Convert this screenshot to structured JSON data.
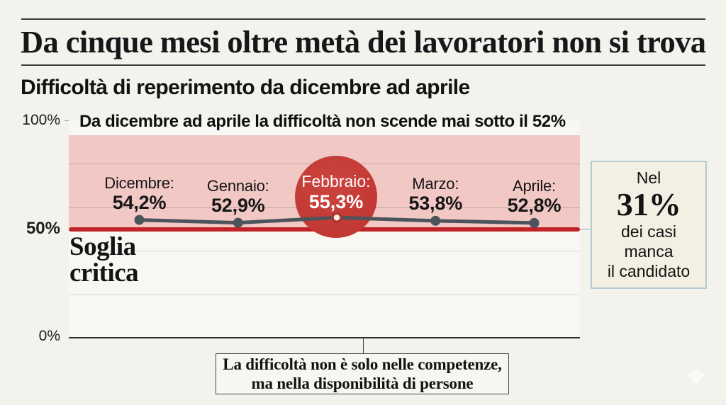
{
  "header": {
    "title": "Da cinque mesi oltre metà dei lavoratori non si trova",
    "subtitle": "Difficoltà di reperimento da dicembre ad aprile"
  },
  "chart_data": {
    "type": "line",
    "title": "Difficoltà di reperimento da dicembre ad aprile",
    "annotation": "Da dicembre ad aprile la difficoltà non scende mai sotto il 52%",
    "categories": [
      "Dicembre",
      "Gennaio",
      "Febbraio",
      "Marzo",
      "Aprile"
    ],
    "category_labels": [
      "Dicembre:",
      "Gennaio:",
      "Febbraio:",
      "Marzo:",
      "Aprile:"
    ],
    "series": [
      {
        "name": "Difficoltà di reperimento (%)",
        "values": [
          54.2,
          52.9,
          55.3,
          53.8,
          52.8
        ]
      }
    ],
    "value_labels": [
      "54,2%",
      "52,9%",
      "55,3%",
      "53,8%",
      "52,8%"
    ],
    "highlight_index": 2,
    "ylim": [
      0,
      100
    ],
    "y_ticks": [
      {
        "value": 100,
        "label": "100%"
      },
      {
        "value": 50,
        "label": "50%"
      },
      {
        "value": 0,
        "label": "0%"
      }
    ],
    "gridline_values": [
      80,
      60,
      40,
      20
    ],
    "band": {
      "from": 50,
      "to": 93
    },
    "threshold": {
      "value": 50,
      "label_line1": "Soglia",
      "label_line2": "critica"
    },
    "grid": true,
    "legend": "none",
    "colors": {
      "band": "#f1c8c4",
      "series_line": "#4b535b",
      "threshold_line": "#c02429",
      "highlight_circle": "#c63c36"
    }
  },
  "side_box": {
    "intro": "Nel",
    "value": "31%",
    "line1": "dei casi",
    "line2": "manca",
    "line3": "il candidato"
  },
  "footnote": {
    "line1": "La difficoltà non è solo nelle competenze,",
    "line2": "ma nella disponibilità di persone"
  }
}
